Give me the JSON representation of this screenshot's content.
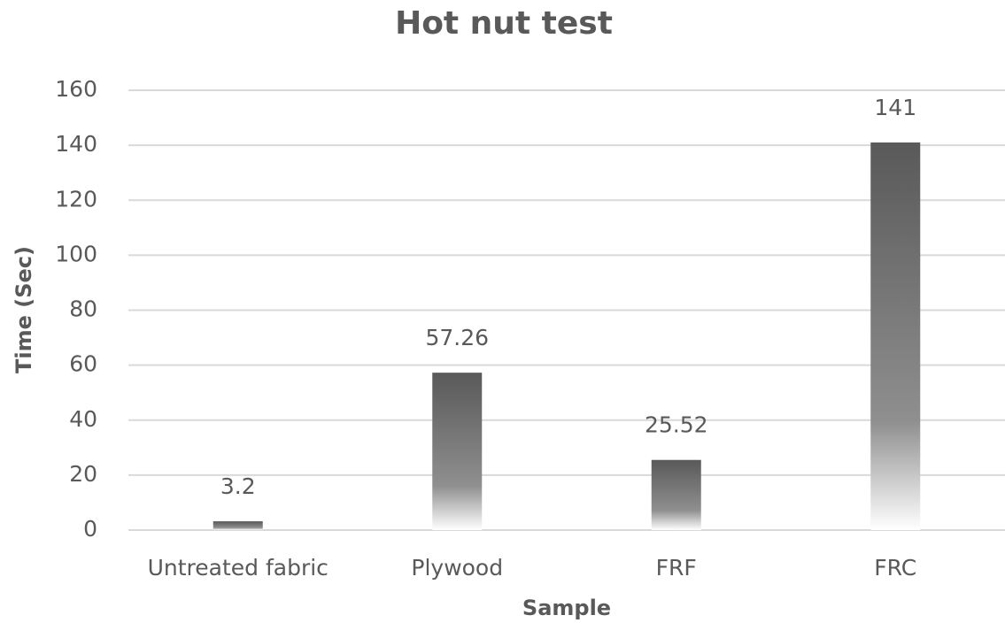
{
  "chart_data": {
    "type": "bar",
    "title": "Hot nut test",
    "x_label": "Sample",
    "y_label": "Time (Sec)",
    "categories": [
      "Untreated fabric",
      "Plywood",
      "FRF",
      "FRC"
    ],
    "values": [
      3.2,
      57.26,
      25.52,
      141
    ],
    "color": "#595959",
    "ylim": [
      0,
      160
    ],
    "yticks": [
      0,
      20,
      40,
      60,
      80,
      100,
      120,
      140,
      160
    ],
    "grid": true
  }
}
